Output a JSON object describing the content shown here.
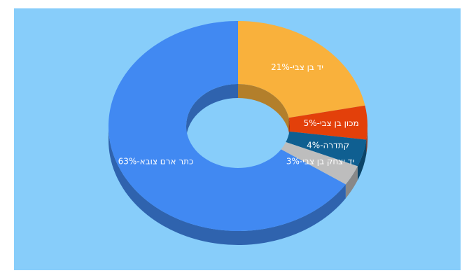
{
  "chart_data": {
    "type": "pie",
    "donut": true,
    "categories": [
      "יד בן צבי-",
      "מכון בן צבי-",
      "קתדרה-",
      "יד יצחק בן צבי-",
      "כתר ארם צובא-"
    ],
    "values": [
      21,
      5,
      4,
      3,
      63
    ],
    "value_labels": [
      "21%",
      "5%",
      "4%",
      "3%",
      "63%"
    ],
    "colors": [
      "#f9b13c",
      "#e3400a",
      "#0f5f91",
      "#bdbdbd",
      "#4189f2"
    ]
  }
}
